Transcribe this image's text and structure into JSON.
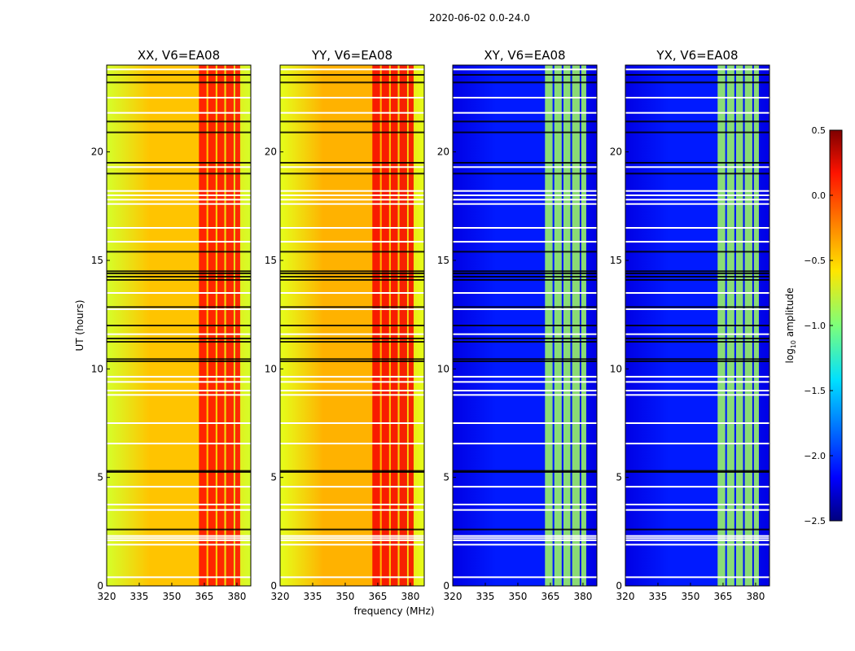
{
  "figure": {
    "suptitle": "2020-06-02 0.0-24.0"
  },
  "chart_data": [
    {
      "type": "heatmap",
      "title": "XX, V6=EA08",
      "xlabel": "",
      "ylabel": "UT (hours)",
      "xlim": [
        320,
        386.4
      ],
      "ylim": [
        0,
        24
      ],
      "xticks": [
        "320",
        "335",
        "350",
        "365",
        "380"
      ],
      "yticks": [
        "0",
        "5",
        "10",
        "15",
        "20"
      ],
      "base_log10_amp": -0.45,
      "edge_log10_amp": -0.75,
      "rfi_log10_amp": 0.1
    },
    {
      "type": "heatmap",
      "title": "YY, V6=EA08",
      "xlabel": "frequency (MHz)",
      "ylabel": "",
      "xlim": [
        320,
        386.4
      ],
      "ylim": [
        0,
        24
      ],
      "xticks": [
        "320",
        "335",
        "350",
        "365",
        "380"
      ],
      "yticks": [
        "0",
        "5",
        "10",
        "15",
        "20"
      ],
      "base_log10_amp": -0.4,
      "edge_log10_amp": -0.7,
      "rfi_log10_amp": 0.15
    },
    {
      "type": "heatmap",
      "title": "XY, V6=EA08",
      "xlabel": "",
      "ylabel": "",
      "xlim": [
        320,
        386.4
      ],
      "ylim": [
        0,
        24
      ],
      "xticks": [
        "320",
        "335",
        "350",
        "365",
        "380"
      ],
      "yticks": [
        "0",
        "5",
        "10",
        "15",
        "20"
      ],
      "base_log10_amp": -2.05,
      "edge_log10_amp": -2.2,
      "rfi_log10_amp": -0.9
    },
    {
      "type": "heatmap",
      "title": "YX, V6=EA08",
      "xlabel": "",
      "ylabel": "",
      "xlim": [
        320,
        386.4
      ],
      "ylim": [
        0,
        24
      ],
      "xticks": [
        "320",
        "335",
        "350",
        "365",
        "380"
      ],
      "yticks": [
        "0",
        "5",
        "10",
        "15",
        "20"
      ],
      "base_log10_amp": -2.05,
      "edge_log10_amp": -2.2,
      "rfi_log10_amp": -0.9
    }
  ],
  "rfi_bands_mhz": [
    [
      362.5,
      366
    ],
    [
      366.8,
      370.2
    ],
    [
      371,
      374.2
    ],
    [
      375,
      378.5
    ],
    [
      379.2,
      381.5
    ]
  ],
  "flagged_ut_hours": [
    0.4,
    1.9,
    2.1,
    2.2,
    2.3,
    3.5,
    3.75,
    4.57,
    6.56,
    7.5,
    8.8,
    9.0,
    9.4,
    9.64,
    11.6,
    12.75,
    13.5,
    15.86,
    16.5,
    17.6,
    17.8,
    18.0,
    18.2,
    19.3,
    21.8,
    22.5,
    23.8
  ],
  "saturated_ut_hours": [
    2.6,
    5.25,
    5.3,
    10.35,
    10.45,
    11.25,
    11.4,
    12.0,
    12.85,
    14.1,
    14.25,
    14.4,
    14.5,
    15.4,
    19.0,
    19.5,
    20.9,
    21.4,
    23.2,
    23.55
  ],
  "colorbar": {
    "label": "log10 amplitude",
    "label_main": "log",
    "label_sub": "10",
    "label_rest": " amplitude",
    "range": [
      -2.5,
      0.5
    ],
    "ticks": [
      "0.5",
      "0.0",
      "−0.5",
      "−1.0",
      "−1.5",
      "−2.0",
      "−2.5"
    ],
    "colormap": "jet"
  }
}
